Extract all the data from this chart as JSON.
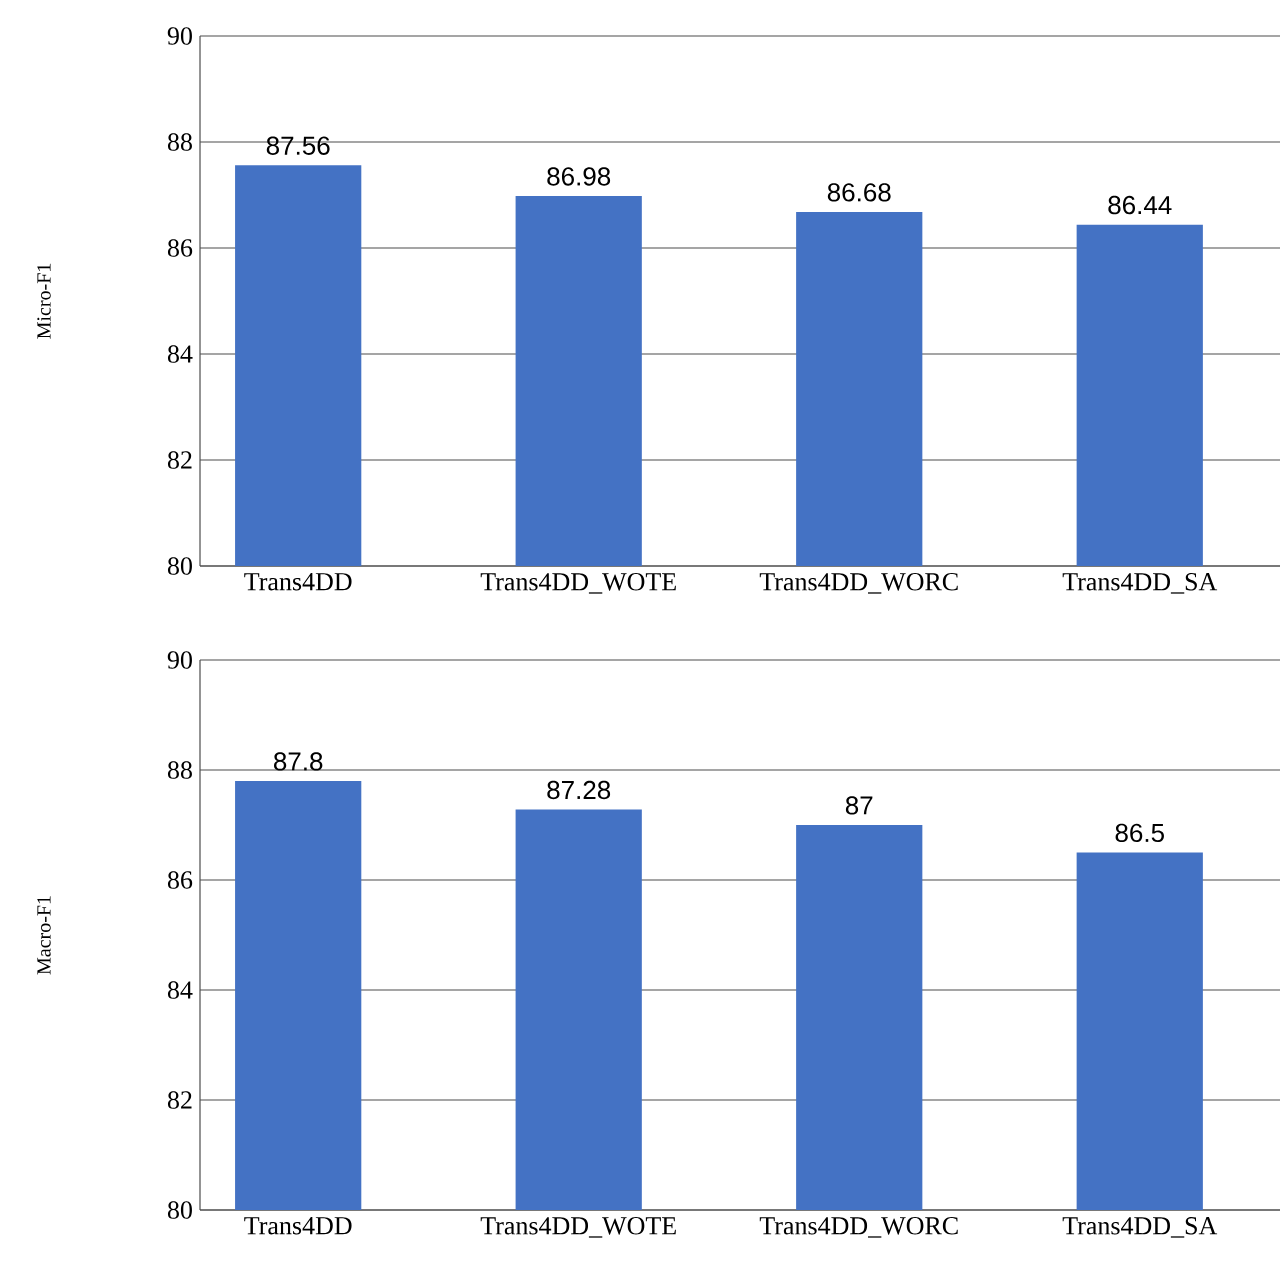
{
  "chart_data": [
    {
      "type": "bar",
      "ylabel": "Micro-F1",
      "categories": [
        "Trans4DD",
        "Trans4DD_WOTE",
        "Trans4DD_WORC",
        "Trans4DD_SA"
      ],
      "values": [
        87.56,
        86.98,
        86.68,
        86.44
      ],
      "color": "#4472c4",
      "ylim": [
        80,
        90
      ],
      "yticks": [
        80,
        82,
        84,
        86,
        88,
        90
      ],
      "grid": "y",
      "data_labels": true
    },
    {
      "type": "bar",
      "ylabel": "Macro-F1",
      "categories": [
        "Trans4DD",
        "Trans4DD_WOTE",
        "Trans4DD_WORC",
        "Trans4DD_SA"
      ],
      "values": [
        87.8,
        87.28,
        87,
        86.5
      ],
      "color": "#4472c4",
      "ylim": [
        80,
        90
      ],
      "yticks": [
        80,
        82,
        84,
        86,
        88,
        90
      ],
      "grid": "y",
      "data_labels": true
    }
  ]
}
